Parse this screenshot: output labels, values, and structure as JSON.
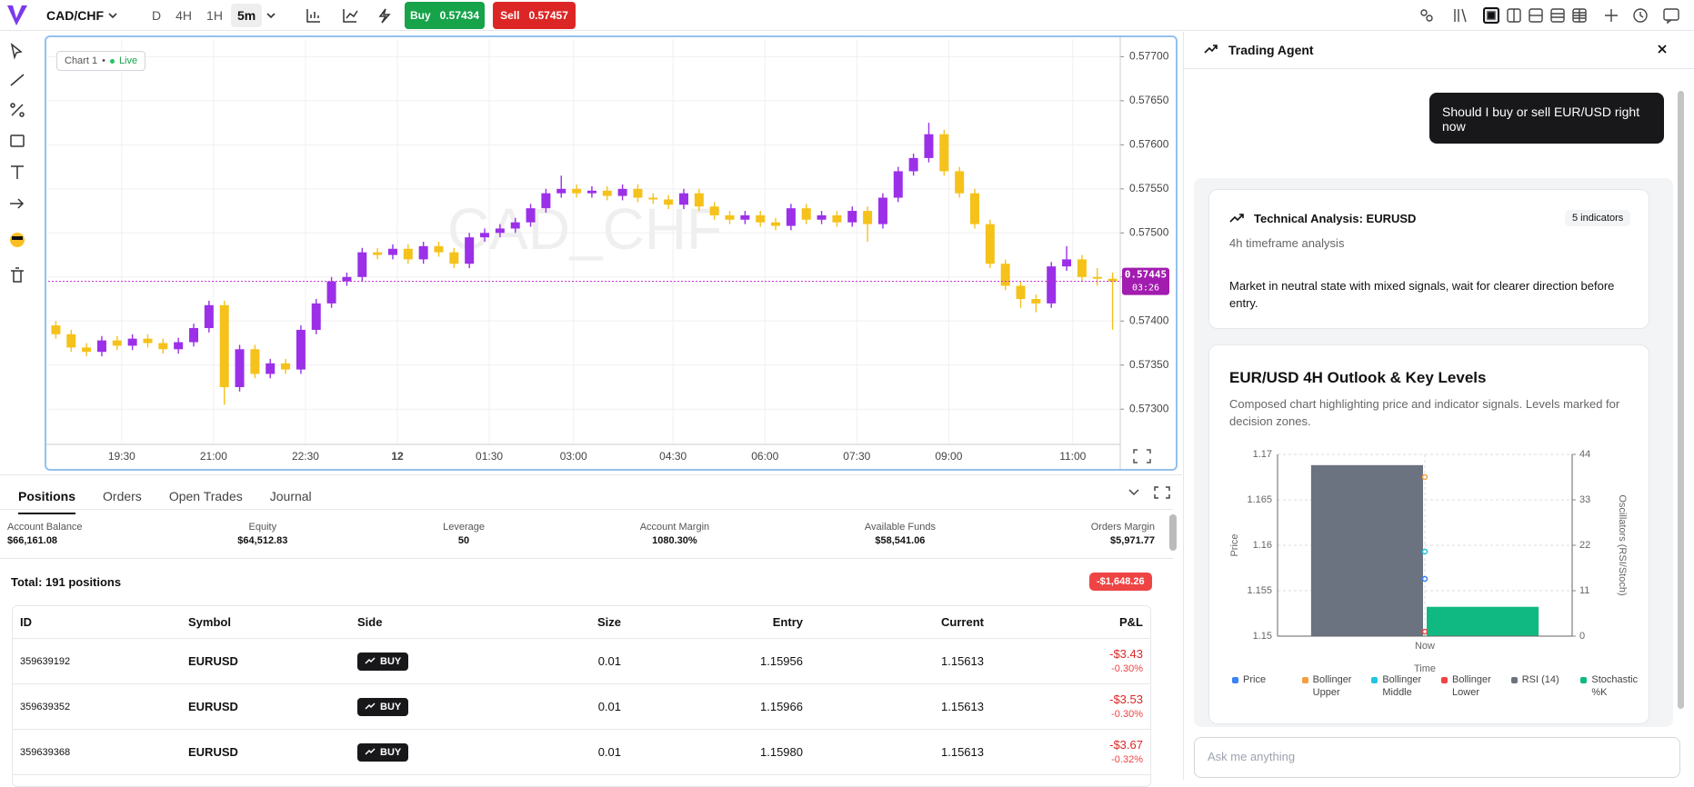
{
  "toolbar": {
    "symbol": "CAD/CHF",
    "timeframes": [
      "D",
      "4H",
      "1H",
      "5m"
    ],
    "buy": {
      "label": "Buy",
      "price": "0.57434"
    },
    "sell": {
      "label": "Sell",
      "price": "0.57457"
    }
  },
  "chart_data": [
    {
      "type": "candlestick",
      "label": "Chart 1",
      "status": "Live",
      "watermark": "CAD_CHF",
      "up_color": "#9b30e8",
      "down_color": "#f5c21b",
      "grid": true,
      "ohlc": [
        [
          0.57395,
          0.574,
          0.5738,
          0.57385
        ],
        [
          0.57385,
          0.5739,
          0.57365,
          0.5737
        ],
        [
          0.5737,
          0.57375,
          0.5736,
          0.57365
        ],
        [
          0.57365,
          0.57383,
          0.5736,
          0.57378
        ],
        [
          0.57378,
          0.57383,
          0.57367,
          0.57372
        ],
        [
          0.57372,
          0.57385,
          0.57367,
          0.5738
        ],
        [
          0.5738,
          0.57385,
          0.5737,
          0.57375
        ],
        [
          0.57375,
          0.5738,
          0.57363,
          0.57368
        ],
        [
          0.57368,
          0.57381,
          0.57363,
          0.57376
        ],
        [
          0.57376,
          0.57397,
          0.57371,
          0.57392
        ],
        [
          0.57392,
          0.57423,
          0.57387,
          0.57418
        ],
        [
          0.57418,
          0.57423,
          0.57305,
          0.57325
        ],
        [
          0.57325,
          0.57373,
          0.5732,
          0.57368
        ],
        [
          0.57368,
          0.57373,
          0.57335,
          0.5734
        ],
        [
          0.5734,
          0.57357,
          0.57335,
          0.57352
        ],
        [
          0.57352,
          0.57357,
          0.5734,
          0.57345
        ],
        [
          0.57345,
          0.57395,
          0.5734,
          0.5739
        ],
        [
          0.5739,
          0.57425,
          0.57385,
          0.5742
        ],
        [
          0.5742,
          0.5745,
          0.57415,
          0.57445
        ],
        [
          0.57445,
          0.57455,
          0.5744,
          0.5745
        ],
        [
          0.5745,
          0.57483,
          0.57445,
          0.57478
        ],
        [
          0.57478,
          0.57483,
          0.5747,
          0.57475
        ],
        [
          0.57475,
          0.57487,
          0.5747,
          0.57482
        ],
        [
          0.57482,
          0.57487,
          0.57465,
          0.5747
        ],
        [
          0.5747,
          0.5749,
          0.57465,
          0.57485
        ],
        [
          0.57485,
          0.5749,
          0.57473,
          0.57478
        ],
        [
          0.57478,
          0.57483,
          0.5746,
          0.57465
        ],
        [
          0.57465,
          0.575,
          0.5746,
          0.57495
        ],
        [
          0.57495,
          0.57505,
          0.5749,
          0.575
        ],
        [
          0.575,
          0.5751,
          0.57495,
          0.57505
        ],
        [
          0.57505,
          0.57517,
          0.575,
          0.57512
        ],
        [
          0.57512,
          0.57533,
          0.57507,
          0.57528
        ],
        [
          0.57528,
          0.5755,
          0.57523,
          0.57545
        ],
        [
          0.57545,
          0.57565,
          0.5754,
          0.5755
        ],
        [
          0.5755,
          0.57555,
          0.5754,
          0.57545
        ],
        [
          0.57545,
          0.57553,
          0.5754,
          0.57548
        ],
        [
          0.57548,
          0.57553,
          0.57537,
          0.57542
        ],
        [
          0.57542,
          0.57555,
          0.57537,
          0.5755
        ],
        [
          0.5755,
          0.57555,
          0.57535,
          0.5754
        ],
        [
          0.5754,
          0.57545,
          0.57533,
          0.57538
        ],
        [
          0.57538,
          0.57543,
          0.57527,
          0.57532
        ],
        [
          0.57532,
          0.5755,
          0.57527,
          0.57545
        ],
        [
          0.57545,
          0.5755,
          0.57525,
          0.5753
        ],
        [
          0.5753,
          0.57535,
          0.57515,
          0.5752
        ],
        [
          0.5752,
          0.57525,
          0.5751,
          0.57515
        ],
        [
          0.57515,
          0.57525,
          0.5751,
          0.5752
        ],
        [
          0.5752,
          0.57525,
          0.57507,
          0.57512
        ],
        [
          0.57512,
          0.57517,
          0.57503,
          0.57508
        ],
        [
          0.57508,
          0.57533,
          0.57503,
          0.57528
        ],
        [
          0.57528,
          0.57533,
          0.5751,
          0.57515
        ],
        [
          0.57515,
          0.57525,
          0.5751,
          0.5752
        ],
        [
          0.5752,
          0.57525,
          0.57507,
          0.57512
        ],
        [
          0.57512,
          0.5753,
          0.57507,
          0.57525
        ],
        [
          0.57525,
          0.5753,
          0.5749,
          0.5751
        ],
        [
          0.5751,
          0.57545,
          0.57505,
          0.5754
        ],
        [
          0.5754,
          0.57575,
          0.57535,
          0.5757
        ],
        [
          0.5757,
          0.5759,
          0.57565,
          0.57585
        ],
        [
          0.57585,
          0.57625,
          0.5758,
          0.57612
        ],
        [
          0.57612,
          0.57617,
          0.57565,
          0.5757
        ],
        [
          0.5757,
          0.57575,
          0.5754,
          0.57545
        ],
        [
          0.57545,
          0.5755,
          0.57505,
          0.5751
        ],
        [
          0.5751,
          0.57515,
          0.5746,
          0.57465
        ],
        [
          0.57465,
          0.5747,
          0.57435,
          0.5744
        ],
        [
          0.5744,
          0.57445,
          0.57415,
          0.57425
        ],
        [
          0.57425,
          0.5743,
          0.5741,
          0.5742
        ],
        [
          0.5742,
          0.57467,
          0.57415,
          0.57462
        ],
        [
          0.57462,
          0.57485,
          0.57457,
          0.5747
        ],
        [
          0.5747,
          0.57475,
          0.57445,
          0.5745
        ],
        [
          0.5745,
          0.5746,
          0.5744,
          0.57448
        ],
        [
          0.57448,
          0.57455,
          0.5739,
          0.57445
        ]
      ],
      "xlim": [
        -0.5,
        69.5
      ],
      "xticks": [
        {
          "value": 4.3,
          "label": "19:30"
        },
        {
          "value": 10.3,
          "label": "21:00"
        },
        {
          "value": 16.3,
          "label": "22:30"
        },
        {
          "value": 22.3,
          "label": "12"
        },
        {
          "value": 28.3,
          "label": "01:30"
        },
        {
          "value": 33.8,
          "label": "03:00"
        },
        {
          "value": 40.3,
          "label": "04:30"
        },
        {
          "value": 46.3,
          "label": "06:00"
        },
        {
          "value": 52.3,
          "label": "07:30"
        },
        {
          "value": 58.3,
          "label": "09:00"
        },
        {
          "value": 66.4,
          "label": "11:00"
        }
      ],
      "ylim": [
        0.5726,
        0.5772
      ],
      "yticks": [
        {
          "value": 0.573,
          "label": "0.57300"
        },
        {
          "value": 0.5735,
          "label": "0.57350"
        },
        {
          "value": 0.574,
          "label": "0.57400"
        },
        {
          "value": 0.5745,
          "label": "0.57450"
        },
        {
          "value": 0.575,
          "label": "0.57500"
        },
        {
          "value": 0.5755,
          "label": "0.57550"
        },
        {
          "value": 0.576,
          "label": "0.57600"
        },
        {
          "value": 0.5765,
          "label": "0.57650"
        },
        {
          "value": 0.577,
          "label": "0.57700"
        }
      ],
      "last_price": 0.57445,
      "countdown": "03:26"
    },
    {
      "type": "composed",
      "title": "EUR/USD 4H Outlook & Key Levels",
      "subtitle": "Composed chart highlighting price and indicator signals. Levels marked for decision zones.",
      "x_label": "Time",
      "y_label": "Price",
      "y2_label": "Oscillators (RSI/Stoch)",
      "categories": [
        "Now"
      ],
      "ylim": [
        1.15,
        1.17
      ],
      "yticks": [
        1.15,
        1.155,
        1.16,
        1.165,
        1.17
      ],
      "y2lim": [
        0,
        44
      ],
      "y2ticks": [
        0,
        11,
        22,
        33,
        44
      ],
      "grid": true,
      "series": [
        {
          "name": "Price",
          "color": "#3b82f6",
          "values": [
            1.1563
          ]
        },
        {
          "name": "Bollinger Upper",
          "color": "#f59e42",
          "values": [
            1.1675
          ]
        },
        {
          "name": "Bollinger Middle",
          "color": "#22c5e0",
          "values": [
            1.1593
          ]
        },
        {
          "name": "Bollinger Lower",
          "color": "#ef4444",
          "values": [
            1.1505
          ]
        },
        {
          "name": "RSI (14)",
          "color": "#6b7280",
          "values": [
            41.4
          ],
          "axis": "y2"
        },
        {
          "name": "Stochastic %K",
          "color": "#10b981",
          "values": [
            7.1
          ],
          "axis": "y2"
        }
      ]
    }
  ],
  "positions": {
    "tabs": [
      "Positions",
      "Orders",
      "Open Trades",
      "Journal"
    ],
    "stats": [
      {
        "label": "Account Balance",
        "value": "$66,161.08"
      },
      {
        "label": "Equity",
        "value": "$64,512.83"
      },
      {
        "label": "Leverage",
        "value": "50"
      },
      {
        "label": "Account Margin",
        "value": "1080.30%"
      },
      {
        "label": "Available Funds",
        "value": "$58,541.06"
      },
      {
        "label": "Orders Margin",
        "value": "$5,971.77"
      }
    ],
    "total": "Total: 191 positions",
    "total_pnl": "-$1,648.26",
    "table": {
      "columns": [
        "ID",
        "Symbol",
        "Side",
        "Size",
        "Entry",
        "Current",
        "P&L"
      ],
      "rows": [
        [
          "359639192",
          "EURUSD",
          "BUY",
          "0.01",
          "1.15956",
          "1.15613",
          "-$3.43",
          "-0.30%"
        ],
        [
          "359639352",
          "EURUSD",
          "BUY",
          "0.01",
          "1.15966",
          "1.15613",
          "-$3.53",
          "-0.30%"
        ],
        [
          "359639368",
          "EURUSD",
          "BUY",
          "0.01",
          "1.15980",
          "1.15613",
          "-$3.67",
          "-0.32%"
        ]
      ]
    }
  },
  "agent": {
    "title": "Trading Agent",
    "user_message": "Should I buy or sell EUR/USD right now",
    "analysis": {
      "title": "Technical Analysis: EURUSD",
      "badge": "5 indicators",
      "subtitle": "4h timeframe analysis",
      "summary": "Market in neutral state with mixed signals, wait for clearer direction before entry."
    },
    "input_placeholder": "Ask me anything"
  }
}
